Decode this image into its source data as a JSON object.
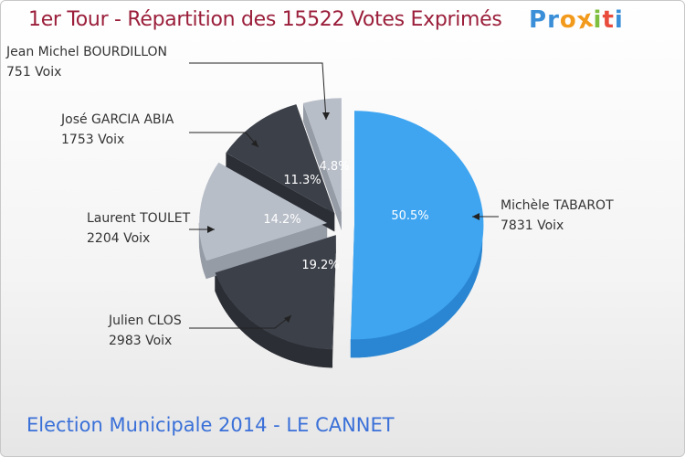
{
  "chart_data": {
    "type": "pie",
    "title": "1er Tour - Répartition des 15522 Votes Exprimés",
    "subtitle": "Election Municipale 2014 - LE CANNET",
    "slices": [
      {
        "name": "Michèle TABAROT",
        "votes": 7831,
        "votes_label": "7831 Voix",
        "percent": 50.5,
        "percent_label": "50.5%",
        "color": "#3fa5f1",
        "side_color": "#2a86d2",
        "text_color": "#ffffff"
      },
      {
        "name": "Julien CLOS",
        "votes": 2983,
        "votes_label": "2983 Voix",
        "percent": 19.2,
        "percent_label": "19.2%",
        "color": "#3c4049",
        "side_color": "#2b2e35",
        "text_color": "#ffffff"
      },
      {
        "name": "Laurent TOULET",
        "votes": 2204,
        "votes_label": "2204 Voix",
        "percent": 14.2,
        "percent_label": "14.2%",
        "color": "#b8bec8",
        "side_color": "#969ca6",
        "text_color": "#ffffff"
      },
      {
        "name": "José GARCIA ABIA",
        "votes": 1753,
        "votes_label": "1753 Voix",
        "percent": 11.3,
        "percent_label": "11.3%",
        "color": "#3c4049",
        "side_color": "#2b2e35",
        "text_color": "#ffffff"
      },
      {
        "name": "Jean Michel BOURDILLON",
        "votes": 751,
        "votes_label": "751 Voix",
        "percent": 4.8,
        "percent_label": "4.8%",
        "color": "#b8bec8",
        "side_color": "#969ca6",
        "text_color": "#ffffff"
      }
    ]
  },
  "logo": {
    "letters": [
      "P",
      "r",
      "o",
      "x",
      "i",
      "t",
      "i"
    ],
    "colors": [
      "#3a8fd8",
      "#3a8fd8",
      "#f29a1b",
      "#f29a1b",
      "#7fbf3f",
      "#e94b3c",
      "#3a8fd8"
    ]
  }
}
